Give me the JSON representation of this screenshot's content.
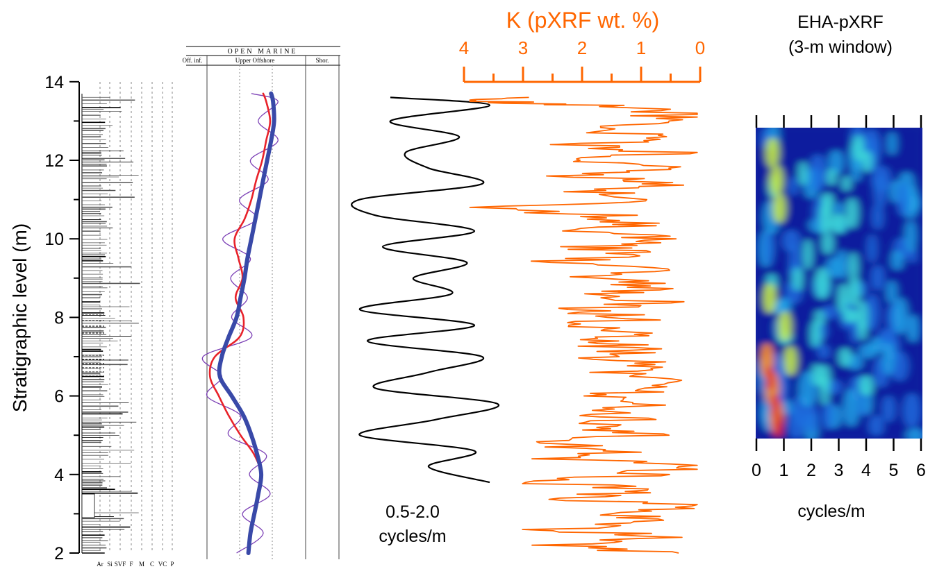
{
  "figure": {
    "y_axis_label": "Stratigraphic level (m)",
    "y_ticks": [
      "2",
      "4",
      "6",
      "8",
      "10",
      "12",
      "14"
    ]
  },
  "colors": {
    "orange": "#ff6600",
    "red": "#e8222a",
    "blue": "#3949a8",
    "purple": "#7b3fb5",
    "black": "#000000"
  },
  "lithology": {
    "grain_labels": [
      "Ar",
      "Si",
      "SVF",
      "F",
      "M",
      "C",
      "VC",
      "P"
    ]
  },
  "facies": {
    "header": "OPEN MARINE",
    "zones": [
      "Off. inf.",
      "Upper Offshore",
      "Shor."
    ]
  },
  "filtered": {
    "label_line1": "0.5-2.0",
    "label_line2": "cycles/m"
  },
  "pxrf": {
    "title": "K (pXRF wt. %)",
    "ticks": [
      "4",
      "3",
      "2",
      "1",
      "0"
    ]
  },
  "eha": {
    "title_line1": "EHA-pXRF",
    "title_line2": "(3-m window)",
    "xlabel": "cycles/m",
    "ticks": [
      "0",
      "1",
      "2",
      "3",
      "4",
      "5",
      "6"
    ]
  },
  "chart_data": [
    {
      "type": "line",
      "panel": "facies curves",
      "y": [
        2,
        2.5,
        3,
        3.5,
        4,
        4.5,
        5,
        5.5,
        6,
        6.5,
        7,
        7.5,
        8,
        8.5,
        9,
        9.5,
        10,
        10.5,
        11,
        11.5,
        12,
        12.5,
        13,
        13.5,
        13.7
      ],
      "series": [
        {
          "x": [
            0.42,
            0.45,
            0.48,
            0.52,
            0.55,
            0.48,
            0.34,
            0.22,
            0.12,
            0.03,
            0.08,
            0.33,
            0.37,
            0.29,
            0.36,
            0.32,
            0.28,
            0.38,
            0.45,
            0.5,
            0.56,
            0.6,
            0.64,
            0.6,
            0.57
          ]
        },
        {
          "x": [
            0.42,
            0.44,
            0.48,
            0.52,
            0.55,
            0.51,
            0.45,
            0.37,
            0.25,
            0.13,
            0.15,
            0.22,
            0.3,
            0.34,
            0.38,
            0.41,
            0.45,
            0.49,
            0.53,
            0.57,
            0.61,
            0.65,
            0.68,
            0.67,
            0.65
          ]
        }
      ],
      "ylim": [
        2,
        14
      ]
    },
    {
      "type": "line",
      "panel": "0.5-2.0 cycles/m filter",
      "y": [
        3.8,
        4.2,
        4.6,
        5.0,
        5.4,
        5.8,
        6.2,
        6.6,
        7.0,
        7.4,
        7.8,
        8.2,
        8.6,
        9.0,
        9.4,
        9.8,
        10.2,
        10.6,
        11.0,
        11.4,
        11.8,
        12.2,
        12.6,
        13.0,
        13.4,
        13.6
      ],
      "x": [
        0.95,
        0.55,
        0.85,
        0.1,
        0.6,
        1.0,
        0.2,
        0.55,
        0.9,
        0.15,
        0.85,
        0.1,
        0.7,
        0.45,
        0.8,
        0.25,
        0.85,
        0.2,
        0.1,
        0.9,
        0.55,
        0.4,
        0.75,
        0.3,
        0.95,
        0.3
      ],
      "ylim": [
        2,
        14
      ]
    },
    {
      "type": "line",
      "panel": "K (pXRF wt. %)",
      "xlabel": "K (pXRF wt. %)",
      "xlim": [
        4,
        0
      ],
      "y": [
        2.0,
        2.2,
        2.4,
        2.6,
        2.8,
        3.0,
        3.2,
        3.4,
        3.6,
        3.8,
        4.0,
        4.2,
        4.4,
        4.6,
        4.8,
        5.0,
        5.2,
        5.4,
        5.6,
        5.8,
        6.0,
        6.2,
        6.4,
        6.6,
        6.8,
        7.0,
        7.2,
        7.4,
        7.6,
        7.8,
        8.0,
        8.2,
        8.4,
        8.6,
        8.8,
        9.0,
        9.2,
        9.4,
        9.6,
        9.8,
        10.0,
        10.2,
        10.4,
        10.6,
        10.8,
        11.0,
        11.2,
        11.4,
        11.6,
        11.8,
        12.0,
        12.2,
        12.4,
        12.6,
        12.8,
        13.0,
        13.2,
        13.4,
        13.5,
        13.6
      ],
      "x": [
        0.6,
        2.2,
        0.5,
        2.5,
        0.7,
        1.5,
        0.4,
        2.3,
        0.8,
        2.7,
        0.9,
        0.3,
        2.2,
        1.2,
        2.8,
        1.0,
        2.0,
        1.1,
        1.8,
        0.8,
        1.3,
        1.2,
        0.9,
        1.7,
        1.1,
        1.6,
        1.1,
        1.9,
        0.8,
        2.0,
        1.0,
        2.1,
        0.9,
        1.8,
        0.7,
        1.9,
        0.9,
        2.5,
        1.0,
        2.0,
        0.6,
        2.0,
        1.1,
        1.6,
        3.8,
        0.8,
        1.9,
        0.6,
        2.1,
        0.7,
        1.8,
        0.5,
        2.0,
        0.6,
        1.9,
        0.8,
        0.4,
        1.7,
        3.8,
        2.9
      ],
      "ylim": [
        2,
        14
      ]
    },
    {
      "type": "heatmap",
      "panel": "EHA-pXRF (3-m window)",
      "xlabel": "cycles/m",
      "xlim": [
        0,
        6
      ],
      "ylim": [
        5,
        12.8
      ]
    }
  ]
}
